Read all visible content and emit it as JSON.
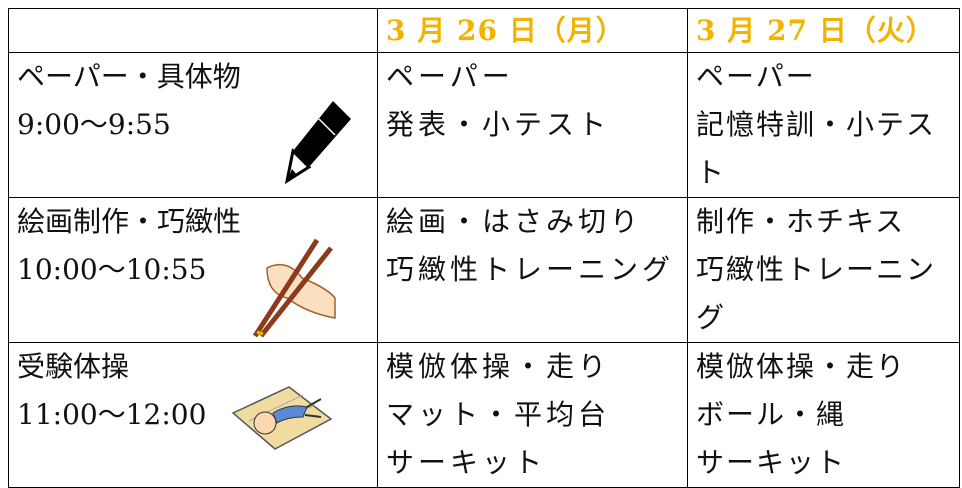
{
  "header": {
    "dates": [
      "3 月 26 日（月）",
      "3 月 27 日（火）"
    ]
  },
  "rows": [
    {
      "subject": "ペーパー・具体物",
      "time": "9:00〜9:55",
      "day1": [
        "ペーパー",
        "発表・小テスト"
      ],
      "day2": [
        "ペーパー",
        "記憶特訓・小テスト"
      ]
    },
    {
      "subject": "絵画制作・巧緻性",
      "time": "10:00〜10:55",
      "day1": [
        "絵画・はさみ切り",
        "巧緻性トレーニング"
      ],
      "day2": [
        "制作・ホチキス",
        "巧緻性トレーニング"
      ]
    },
    {
      "subject": "受験体操",
      "time": "11:00〜12:00",
      "day1": [
        "模倣体操・走り",
        "マット・平均台",
        "サーキット"
      ],
      "day2": [
        "模倣体操・走り",
        "ボール・縄",
        "サーキット"
      ]
    }
  ]
}
